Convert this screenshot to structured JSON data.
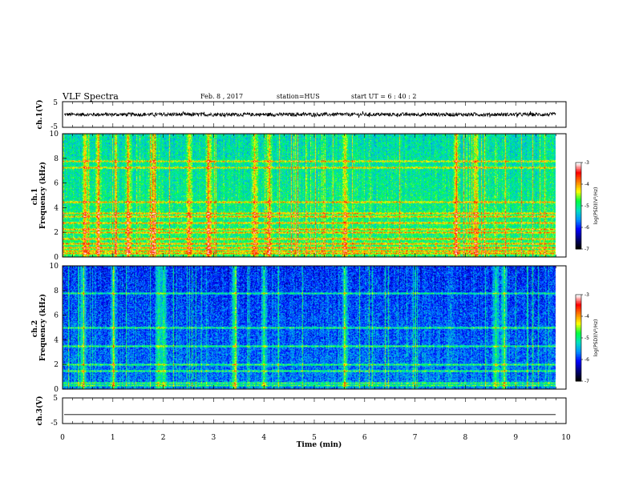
{
  "header": {
    "title": "VLF Spectra",
    "date": "Feb. 8 , 2017",
    "station": "station=HUS",
    "start": "start  UT =   6 : 40 : 2"
  },
  "colors": {
    "background_spec": "#000060",
    "colormap": [
      "#000000",
      "#00007a",
      "#0000ff",
      "#0090ff",
      "#00e0c0",
      "#00ff40",
      "#ffff00",
      "#ff8000",
      "#ff0000",
      "#ffffff"
    ]
  },
  "chart_data": [
    {
      "type": "line",
      "name": "ch1-waveform",
      "ylabel": "ch.1(V)",
      "ylim": [
        -5,
        5
      ],
      "yticks": [
        "5",
        "-5"
      ],
      "xlim": [
        0,
        10
      ],
      "x_extent": [
        0,
        9.8
      ],
      "mean": 0,
      "amplitude": 0.7
    },
    {
      "type": "heatmap",
      "name": "ch1-spectrogram",
      "ylabel": "ch.1\nFrequency (kHz)",
      "ylim": [
        0,
        10
      ],
      "yticks": [
        "0",
        "2",
        "4",
        "6",
        "8",
        "10"
      ],
      "xlim": [
        0,
        10
      ],
      "x_extent": [
        0,
        9.8
      ],
      "colorbar": {
        "label": "log(PSD)(V²/Hz)",
        "range": [
          -7,
          -3
        ],
        "ticks": [
          "-3",
          "-4",
          "-5",
          "-6",
          "-7"
        ]
      },
      "base_level": 0.45,
      "horizontal_lines_khz": [
        0.3,
        0.5,
        0.8,
        1.1,
        1.5,
        2.0,
        2.3,
        2.8,
        3.3,
        3.6,
        4.5,
        7.3,
        7.8
      ],
      "bursts_min": [
        0.45,
        0.7,
        1.3,
        1.8,
        2.5,
        2.9,
        3.8,
        4.1,
        5.6,
        7.8,
        8.2
      ]
    },
    {
      "type": "heatmap",
      "name": "ch2-spectrogram",
      "ylabel": "ch.2\nFrequency (kHz)",
      "ylim": [
        0,
        10
      ],
      "yticks": [
        "0",
        "2",
        "4",
        "6",
        "8",
        "10"
      ],
      "xlim": [
        0,
        10
      ],
      "x_extent": [
        0,
        9.8
      ],
      "colorbar": {
        "label": "log(PSD)(V²/Hz)",
        "range": [
          -7,
          -3
        ],
        "ticks": [
          "-3",
          "-4",
          "-5",
          "-6",
          "-7"
        ]
      },
      "base_level": 0.25,
      "horizontal_lines_khz": [
        0.3,
        0.5,
        1.5,
        2.0,
        3.5,
        5.0,
        7.8
      ],
      "bursts_min": [
        0.4,
        1.0,
        1.9,
        2.0,
        3.4,
        4.0,
        5.6,
        8.6,
        8.75
      ]
    },
    {
      "type": "line",
      "name": "ch3-waveform",
      "ylabel": "ch.3(V)",
      "ylim": [
        -5,
        5
      ],
      "yticks": [
        "5",
        "-5"
      ],
      "xlim": [
        0,
        10
      ],
      "x_extent": [
        0,
        9.8
      ],
      "mean": -1.5,
      "amplitude": 0.0
    }
  ],
  "x_axis": {
    "label": "Time  (min)",
    "ticks": [
      "0",
      "1",
      "2",
      "3",
      "4",
      "5",
      "6",
      "7",
      "8",
      "9",
      "10"
    ],
    "range": [
      0,
      10
    ]
  }
}
